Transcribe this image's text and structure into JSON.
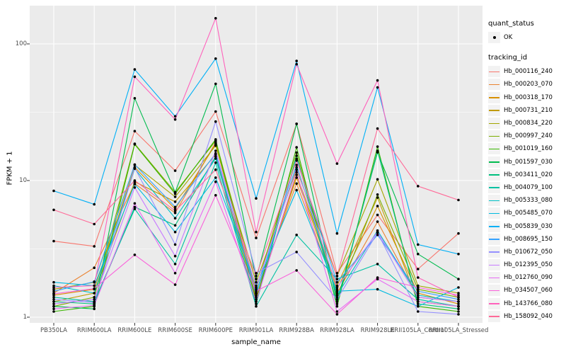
{
  "chart_data": {
    "type": "line",
    "title": "",
    "xlabel": "sample_name",
    "ylabel": "FPKM + 1",
    "y_scale": "log10",
    "ylim": [
      1,
      200
    ],
    "y_major_ticks": [
      1,
      10,
      100
    ],
    "y_minor_gridlines": [
      3.162,
      31.62
    ],
    "grid": "on",
    "panel_background": "#ebebeb",
    "gridline_color": "#ffffff",
    "point_color": "#000000",
    "legend_position": "right",
    "categories": [
      "PB350LA",
      "RRIM600LA",
      "RRIM600LE",
      "RRIM600SE",
      "RRIM600PE",
      "RRIM901LA",
      "RRIM928BA",
      "RRIM928LA",
      "RRIM928LE",
      "RRII105LA_Control",
      "RRII105LA_Stressed"
    ],
    "series": [
      {
        "name": "Hb_000116_240",
        "color": "#F8766D",
        "values": [
          3.6,
          3.3,
          23,
          11.8,
          32,
          3.8,
          26,
          2.1,
          5.6,
          2.25,
          4.1
        ]
      },
      {
        "name": "Hb_000203_070",
        "color": "#EA8331",
        "values": [
          1.5,
          2.3,
          9.5,
          5.8,
          19,
          1.5,
          9.5,
          1.5,
          5.0,
          1.4,
          1.3
        ]
      },
      {
        "name": "Hb_000318_170",
        "color": "#D89000",
        "values": [
          1.45,
          1.6,
          12.5,
          6.2,
          18.5,
          1.4,
          10.5,
          1.6,
          6.5,
          1.5,
          1.25
        ]
      },
      {
        "name": "Hb_000731_210",
        "color": "#C09B00",
        "values": [
          1.3,
          1.5,
          9.8,
          7.0,
          15.5,
          1.35,
          11,
          1.7,
          7.5,
          1.3,
          1.2
        ]
      },
      {
        "name": "Hb_000834_220",
        "color": "#A3A500",
        "values": [
          1.6,
          1.8,
          13,
          7.6,
          18,
          1.8,
          12,
          2.0,
          10.2,
          1.7,
          1.5
        ]
      },
      {
        "name": "Hb_000997_240",
        "color": "#7CAE00",
        "values": [
          1.2,
          1.4,
          18.6,
          8.2,
          19.5,
          1.6,
          16,
          1.4,
          7.9,
          1.6,
          1.4
        ]
      },
      {
        "name": "Hb_001019_160",
        "color": "#39B600",
        "values": [
          1.1,
          1.2,
          18.4,
          8.0,
          20,
          1.3,
          17.5,
          1.2,
          17.7,
          1.2,
          1.1
        ]
      },
      {
        "name": "Hb_001597_030",
        "color": "#00BB4E",
        "values": [
          1.2,
          1.15,
          40,
          8.2,
          51,
          1.9,
          26,
          1.3,
          16.1,
          2.9,
          1.9
        ]
      },
      {
        "name": "Hb_003411_020",
        "color": "#00BF7D",
        "values": [
          1.3,
          1.25,
          6.4,
          4.7,
          15,
          1.25,
          15.2,
          1.25,
          16.5,
          1.25,
          1.15
        ]
      },
      {
        "name": "Hb_004079_100",
        "color": "#00C1A3",
        "values": [
          1.4,
          1.3,
          6.2,
          2.45,
          13.5,
          1.2,
          4.0,
          1.9,
          2.45,
          1.35,
          1.2
        ]
      },
      {
        "name": "Hb_005333_080",
        "color": "#00BFC4",
        "values": [
          1.7,
          1.5,
          12.2,
          5.3,
          14.5,
          1.5,
          13,
          1.45,
          4.3,
          1.45,
          1.3
        ]
      },
      {
        "name": "Hb_005485_070",
        "color": "#00BAE0",
        "values": [
          1.8,
          1.7,
          9.4,
          4.2,
          10.5,
          1.7,
          8.5,
          1.55,
          1.6,
          1.2,
          1.65
        ]
      },
      {
        "name": "Hb_005839_030",
        "color": "#00B0F6",
        "values": [
          8.4,
          6.7,
          65,
          29.5,
          78,
          7.4,
          75,
          4.1,
          48,
          3.4,
          2.9
        ]
      },
      {
        "name": "Hb_008695_150",
        "color": "#35A2FF",
        "values": [
          1.55,
          1.82,
          13.1,
          6.4,
          15.8,
          1.45,
          14.4,
          1.8,
          4.0,
          1.55,
          1.35
        ]
      },
      {
        "name": "Hb_010672_050",
        "color": "#9590FF",
        "values": [
          1.35,
          1.28,
          12.4,
          3.4,
          27,
          2.1,
          3.0,
          1.35,
          4.15,
          1.1,
          1.05
        ]
      },
      {
        "name": "Hb_012395_050",
        "color": "#C77CFF",
        "values": [
          1.25,
          1.35,
          8.9,
          2.8,
          16.5,
          1.65,
          12.5,
          1.65,
          4.2,
          1.4,
          1.3
        ]
      },
      {
        "name": "Hb_012760_090",
        "color": "#E76BF3",
        "values": [
          1.15,
          1.22,
          6.8,
          2.1,
          9.8,
          1.3,
          11.5,
          1.1,
          1.9,
          1.3,
          1.2
        ]
      },
      {
        "name": "Hb_034507_060",
        "color": "#FA62DB",
        "values": [
          1.48,
          1.62,
          2.86,
          1.73,
          7.8,
          1.55,
          2.2,
          1.05,
          1.95,
          1.65,
          1.45
        ]
      },
      {
        "name": "Hb_143766_080",
        "color": "#FF62BC",
        "values": [
          1.65,
          1.7,
          57.5,
          28,
          154,
          4.2,
          71,
          13.3,
          54,
          1.95,
          1.4
        ]
      },
      {
        "name": "Hb_158092_040",
        "color": "#FF6A98",
        "values": [
          6.1,
          4.8,
          10,
          6.0,
          12,
          2.0,
          14,
          2.0,
          24,
          9.1,
          7.2
        ]
      }
    ]
  },
  "axes": {
    "x_title": "sample_name",
    "y_title": "FPKM + 1",
    "y_tick_labels": [
      "100",
      "10",
      "1"
    ]
  },
  "legend": {
    "quant_title": "quant_status",
    "quant_items": [
      {
        "label": "OK"
      }
    ],
    "tracking_title": "tracking_id"
  }
}
